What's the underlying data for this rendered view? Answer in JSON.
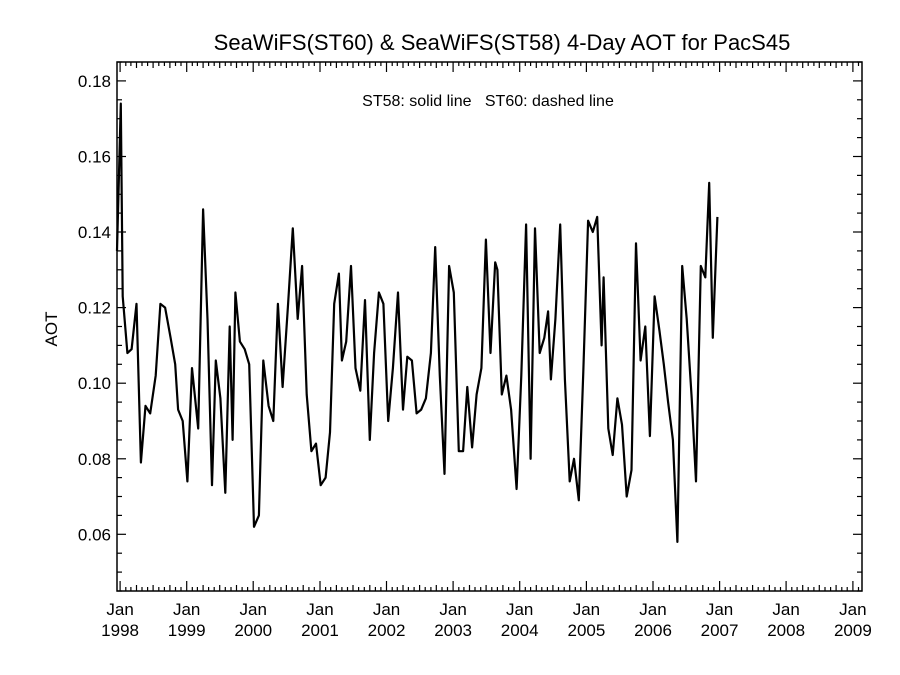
{
  "chart_data": {
    "type": "line",
    "title": "SeaWiFS(ST60) & SeaWiFS(ST58) 4-Day AOT for PacS45",
    "annotation": "ST58: solid line   ST60: dashed line",
    "ylabel": "AOT",
    "xlabel": "",
    "ylim": [
      0.045,
      0.185
    ],
    "xlim": [
      "1997-12-15",
      "2009-02-20"
    ],
    "y_ticks": [
      "0.06",
      "0.08",
      "0.10",
      "0.12",
      "0.14",
      "0.16",
      "0.18"
    ],
    "x_ticks": [
      {
        "month": "Jan",
        "year": "1998",
        "date": "1998-01-01"
      },
      {
        "month": "Jan",
        "year": "1999",
        "date": "1999-01-01"
      },
      {
        "month": "Jan",
        "year": "2000",
        "date": "2000-01-01"
      },
      {
        "month": "Jan",
        "year": "2001",
        "date": "2001-01-01"
      },
      {
        "month": "Jan",
        "year": "2002",
        "date": "2002-01-01"
      },
      {
        "month": "Jan",
        "year": "2003",
        "date": "2003-01-01"
      },
      {
        "month": "Jan",
        "year": "2004",
        "date": "2004-01-01"
      },
      {
        "month": "Jan",
        "year": "2005",
        "date": "2005-01-01"
      },
      {
        "month": "Jan",
        "year": "2006",
        "date": "2006-01-01"
      },
      {
        "month": "Jan",
        "year": "2007",
        "date": "2007-01-01"
      },
      {
        "month": "Jan",
        "year": "2008",
        "date": "2008-01-01"
      },
      {
        "month": "Jan",
        "year": "2009",
        "date": "2009-01-01"
      }
    ],
    "grid": false,
    "series": [
      {
        "line_style": "solid",
        "color": "#000000",
        "points": [
          [
            "1997-12-15",
            0.135
          ],
          [
            "1998-01-05",
            0.174
          ],
          [
            "1998-01-15",
            0.123
          ],
          [
            "1998-02-10",
            0.108
          ],
          [
            "1998-03-05",
            0.109
          ],
          [
            "1998-04-01",
            0.121
          ],
          [
            "1998-04-25",
            0.079
          ],
          [
            "1998-05-20",
            0.094
          ],
          [
            "1998-06-15",
            0.092
          ],
          [
            "1998-07-15",
            0.102
          ],
          [
            "1998-08-10",
            0.121
          ],
          [
            "1998-09-05",
            0.12
          ],
          [
            "1998-10-05",
            0.112
          ],
          [
            "1998-10-30",
            0.105
          ],
          [
            "1998-11-15",
            0.093
          ],
          [
            "1998-12-10",
            0.09
          ],
          [
            "1999-01-05",
            0.074
          ],
          [
            "1999-01-30",
            0.104
          ],
          [
            "1999-03-05",
            0.088
          ],
          [
            "1999-04-01",
            0.146
          ],
          [
            "1999-04-25",
            0.117
          ],
          [
            "1999-05-20",
            0.073
          ],
          [
            "1999-06-10",
            0.106
          ],
          [
            "1999-07-05",
            0.096
          ],
          [
            "1999-08-01",
            0.071
          ],
          [
            "1999-08-25",
            0.115
          ],
          [
            "1999-09-10",
            0.085
          ],
          [
            "1999-09-25",
            0.124
          ],
          [
            "1999-10-20",
            0.111
          ],
          [
            "1999-11-15",
            0.109
          ],
          [
            "1999-12-10",
            0.105
          ],
          [
            "2000-01-05",
            0.062
          ],
          [
            "2000-02-01",
            0.065
          ],
          [
            "2000-02-25",
            0.106
          ],
          [
            "2000-03-25",
            0.094
          ],
          [
            "2000-04-20",
            0.09
          ],
          [
            "2000-05-15",
            0.121
          ],
          [
            "2000-06-10",
            0.099
          ],
          [
            "2000-07-10",
            0.121
          ],
          [
            "2000-08-05",
            0.141
          ],
          [
            "2000-09-01",
            0.117
          ],
          [
            "2000-09-25",
            0.131
          ],
          [
            "2000-10-20",
            0.097
          ],
          [
            "2000-11-15",
            0.082
          ],
          [
            "2000-12-10",
            0.084
          ],
          [
            "2001-01-05",
            0.073
          ],
          [
            "2001-02-01",
            0.075
          ],
          [
            "2001-02-25",
            0.087
          ],
          [
            "2001-03-20",
            0.121
          ],
          [
            "2001-04-15",
            0.129
          ],
          [
            "2001-05-01",
            0.106
          ],
          [
            "2001-05-25",
            0.111
          ],
          [
            "2001-06-20",
            0.131
          ],
          [
            "2001-07-15",
            0.104
          ],
          [
            "2001-08-10",
            0.098
          ],
          [
            "2001-09-05",
            0.122
          ],
          [
            "2001-10-01",
            0.085
          ],
          [
            "2001-10-25",
            0.108
          ],
          [
            "2001-11-20",
            0.124
          ],
          [
            "2001-12-15",
            0.121
          ],
          [
            "2002-01-10",
            0.09
          ],
          [
            "2002-02-05",
            0.104
          ],
          [
            "2002-03-05",
            0.124
          ],
          [
            "2002-04-01",
            0.093
          ],
          [
            "2002-04-25",
            0.107
          ],
          [
            "2002-05-20",
            0.106
          ],
          [
            "2002-06-15",
            0.092
          ],
          [
            "2002-07-10",
            0.093
          ],
          [
            "2002-08-05",
            0.096
          ],
          [
            "2002-09-01",
            0.108
          ],
          [
            "2002-09-25",
            0.136
          ],
          [
            "2002-10-20",
            0.102
          ],
          [
            "2002-11-15",
            0.076
          ],
          [
            "2002-12-10",
            0.131
          ],
          [
            "2003-01-05",
            0.124
          ],
          [
            "2003-02-01",
            0.082
          ],
          [
            "2003-02-25",
            0.082
          ],
          [
            "2003-03-20",
            0.099
          ],
          [
            "2003-04-15",
            0.083
          ],
          [
            "2003-05-10",
            0.097
          ],
          [
            "2003-06-05",
            0.104
          ],
          [
            "2003-06-30",
            0.138
          ],
          [
            "2003-07-25",
            0.108
          ],
          [
            "2003-08-20",
            0.132
          ],
          [
            "2003-09-01",
            0.13
          ],
          [
            "2003-09-25",
            0.097
          ],
          [
            "2003-10-20",
            0.102
          ],
          [
            "2003-11-15",
            0.093
          ],
          [
            "2003-12-15",
            0.072
          ],
          [
            "2004-01-10",
            0.102
          ],
          [
            "2004-02-05",
            0.142
          ],
          [
            "2004-03-01",
            0.08
          ],
          [
            "2004-03-25",
            0.141
          ],
          [
            "2004-04-20",
            0.108
          ],
          [
            "2004-05-15",
            0.112
          ],
          [
            "2004-06-05",
            0.119
          ],
          [
            "2004-06-20",
            0.101
          ],
          [
            "2004-07-15",
            0.117
          ],
          [
            "2004-08-10",
            0.142
          ],
          [
            "2004-09-05",
            0.101
          ],
          [
            "2004-10-01",
            0.074
          ],
          [
            "2004-10-25",
            0.08
          ],
          [
            "2004-11-20",
            0.069
          ],
          [
            "2004-12-15",
            0.103
          ],
          [
            "2005-01-10",
            0.143
          ],
          [
            "2005-02-05",
            0.14
          ],
          [
            "2005-03-01",
            0.144
          ],
          [
            "2005-03-25",
            0.11
          ],
          [
            "2005-04-05",
            0.128
          ],
          [
            "2005-05-01",
            0.088
          ],
          [
            "2005-05-25",
            0.081
          ],
          [
            "2005-06-20",
            0.096
          ],
          [
            "2005-07-15",
            0.089
          ],
          [
            "2005-08-10",
            0.07
          ],
          [
            "2005-09-05",
            0.077
          ],
          [
            "2005-09-30",
            0.137
          ],
          [
            "2005-10-25",
            0.106
          ],
          [
            "2005-11-20",
            0.115
          ],
          [
            "2005-12-15",
            0.086
          ],
          [
            "2006-01-10",
            0.123
          ],
          [
            "2006-02-05",
            0.114
          ],
          [
            "2006-03-01",
            0.105
          ],
          [
            "2006-03-25",
            0.095
          ],
          [
            "2006-04-20",
            0.085
          ],
          [
            "2006-05-15",
            0.058
          ],
          [
            "2006-06-10",
            0.131
          ],
          [
            "2006-07-05",
            0.117
          ],
          [
            "2006-08-01",
            0.096
          ],
          [
            "2006-08-25",
            0.074
          ],
          [
            "2006-09-20",
            0.131
          ],
          [
            "2006-10-15",
            0.128
          ],
          [
            "2006-11-05",
            0.153
          ],
          [
            "2006-11-25",
            0.112
          ],
          [
            "2006-12-20",
            0.144
          ]
        ]
      }
    ]
  }
}
